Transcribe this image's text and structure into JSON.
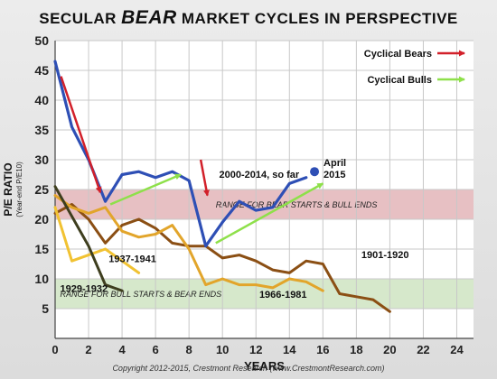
{
  "title": {
    "prefix": "SECULAR",
    "emphasis": "BEAR",
    "suffix": "MARKET CYCLES IN PERSPECTIVE"
  },
  "copyright": "Copyright 2012-2015, Crestmont Research (www.CrestmontResearch.com)",
  "chart_data": {
    "type": "line",
    "xlabel": "YEARS",
    "ylabel": "P/E RATIO",
    "ylabel_sub": "(Year-end P/E10)",
    "xlim": [
      0,
      25
    ],
    "ylim": [
      0,
      50
    ],
    "xticks": [
      0,
      2,
      4,
      6,
      8,
      10,
      12,
      14,
      16,
      18,
      20,
      22,
      24
    ],
    "yticks": [
      5,
      10,
      15,
      20,
      25,
      30,
      35,
      40,
      45,
      50
    ],
    "grid": true,
    "bands": [
      {
        "label": "RANGE FOR BEAR STARTS & BULL ENDS",
        "from": 20,
        "to": 25,
        "color": "#e3b5b8"
      },
      {
        "label": "RANGE FOR BULL STARTS & BEAR ENDS",
        "from": 5,
        "to": 10,
        "color": "#cfe4c2"
      }
    ],
    "legend": {
      "position": "top-right",
      "items": [
        {
          "label": "Cyclical Bears",
          "color": "#d2202a"
        },
        {
          "label": "Cyclical Bulls",
          "color": "#8ee04a"
        }
      ]
    },
    "series": [
      {
        "name": "2000-2014, so far",
        "color": "#2e4fb5",
        "x": [
          0,
          1,
          2,
          3,
          4,
          5,
          6,
          7,
          8,
          9,
          10,
          11,
          12,
          13,
          14,
          15
        ],
        "y": [
          46.5,
          35.5,
          30,
          23,
          27.5,
          28,
          27,
          28,
          26.5,
          15.5,
          19.5,
          23,
          21.5,
          22,
          26,
          27
        ]
      },
      {
        "name": "1901-1920",
        "color": "#8b4f14",
        "x": [
          0,
          1,
          2,
          3,
          4,
          5,
          6,
          7,
          8,
          9,
          10,
          11,
          12,
          13,
          14,
          15,
          16,
          17,
          18,
          19,
          20
        ],
        "y": [
          21,
          22.5,
          20,
          16,
          19,
          20,
          18.5,
          16,
          15.5,
          15.5,
          13.5,
          14,
          13,
          11.5,
          11,
          13,
          12.5,
          7.5,
          7,
          6.5,
          4.5
        ]
      },
      {
        "name": "1966-1981",
        "color": "#e2a52b",
        "x": [
          0,
          1,
          2,
          3,
          4,
          5,
          6,
          7,
          8,
          9,
          10,
          11,
          12,
          13,
          14,
          15,
          16
        ],
        "y": [
          24,
          22,
          21,
          22,
          18,
          17,
          17.5,
          19,
          15,
          9,
          10,
          9,
          9,
          8.5,
          10,
          9.5,
          8
        ]
      },
      {
        "name": "1937-1941",
        "color": "#f1c232",
        "x": [
          0,
          1,
          2,
          3,
          4,
          5
        ],
        "y": [
          22,
          13,
          14,
          15,
          13,
          11
        ]
      },
      {
        "name": "1929-1932",
        "color": "#3e3e1e",
        "x": [
          0,
          1,
          2,
          3,
          4
        ],
        "y": [
          25.5,
          20.5,
          15.5,
          9,
          8
        ]
      }
    ],
    "point_marker": {
      "series": "2000-2014, so far",
      "x": 15.5,
      "y": 28,
      "label_lines": [
        "April",
        "2015"
      ]
    },
    "arrows": [
      {
        "kind": "bear",
        "from": [
          0.35,
          44
        ],
        "to": [
          2.7,
          24.5
        ]
      },
      {
        "kind": "bull",
        "from": [
          3.3,
          22.5
        ],
        "to": [
          7.5,
          27.5
        ]
      },
      {
        "kind": "bear",
        "from": [
          8.7,
          30
        ],
        "to": [
          9.1,
          24
        ]
      },
      {
        "kind": "bull",
        "from": [
          9.6,
          16
        ],
        "to": [
          16,
          26
        ]
      }
    ],
    "annotations": [
      {
        "text": "2000-2014, so far",
        "x": 9.8,
        "y": 27,
        "color": "#111"
      },
      {
        "text": "1901-1920",
        "x": 18.3,
        "y": 13.5,
        "color": "#111"
      },
      {
        "text": "1966-1981",
        "x": 12.2,
        "y": 6.8,
        "color": "#111"
      },
      {
        "text": "1937-1941",
        "x": 3.2,
        "y": 12.8,
        "color": "#111"
      },
      {
        "text": "1929-1932",
        "x": 0.3,
        "y": 7.8,
        "color": "#111"
      }
    ]
  }
}
